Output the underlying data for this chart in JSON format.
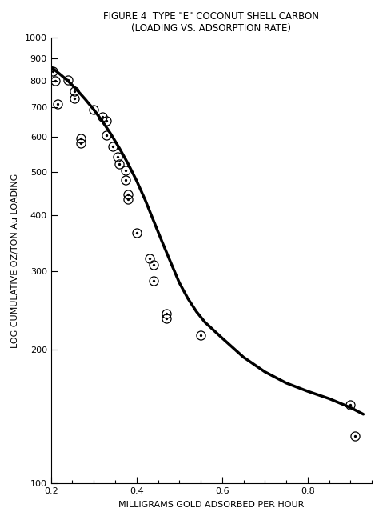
{
  "title_line1": "FIGURE 4  TYPE \"E\" COCONUT SHELL CARBON",
  "title_line2": "(LOADING VS. ADSORPTION RATE)",
  "xlabel": "MILLIGRAMS GOLD ADSORBED PER HOUR",
  "ylabel": "LOG CUMULATIVE OZ/TON Au LOADING",
  "xlim": [
    0.2,
    0.95
  ],
  "ylim": [
    100,
    1000
  ],
  "xticks": [
    0.2,
    0.4,
    0.6,
    0.8
  ],
  "yticks": [
    100,
    200,
    300,
    400,
    500,
    600,
    700,
    800,
    900,
    1000
  ],
  "data_points": [
    [
      0.205,
      840
    ],
    [
      0.21,
      800
    ],
    [
      0.215,
      710
    ],
    [
      0.24,
      805
    ],
    [
      0.255,
      760
    ],
    [
      0.255,
      730
    ],
    [
      0.27,
      595
    ],
    [
      0.27,
      580
    ],
    [
      0.3,
      690
    ],
    [
      0.32,
      665
    ],
    [
      0.33,
      650
    ],
    [
      0.33,
      605
    ],
    [
      0.345,
      570
    ],
    [
      0.355,
      540
    ],
    [
      0.36,
      520
    ],
    [
      0.375,
      505
    ],
    [
      0.375,
      480
    ],
    [
      0.38,
      445
    ],
    [
      0.38,
      435
    ],
    [
      0.4,
      365
    ],
    [
      0.43,
      320
    ],
    [
      0.44,
      310
    ],
    [
      0.44,
      285
    ],
    [
      0.47,
      240
    ],
    [
      0.47,
      235
    ],
    [
      0.55,
      215
    ],
    [
      0.9,
      150
    ],
    [
      0.91,
      128
    ]
  ],
  "curve_x": [
    0.2,
    0.21,
    0.22,
    0.24,
    0.26,
    0.28,
    0.3,
    0.32,
    0.34,
    0.36,
    0.38,
    0.4,
    0.42,
    0.44,
    0.46,
    0.48,
    0.5,
    0.52,
    0.54,
    0.56,
    0.6,
    0.65,
    0.7,
    0.75,
    0.8,
    0.85,
    0.9,
    0.93
  ],
  "curve_y": [
    860,
    845,
    830,
    800,
    765,
    728,
    690,
    650,
    608,
    565,
    522,
    478,
    433,
    388,
    348,
    313,
    282,
    260,
    243,
    230,
    212,
    192,
    178,
    168,
    161,
    155,
    148,
    143
  ],
  "bg_color": "#ffffff",
  "marker_color": "black",
  "line_color": "black",
  "title_fontsize": 8.5,
  "label_fontsize": 8,
  "tick_fontsize": 8
}
